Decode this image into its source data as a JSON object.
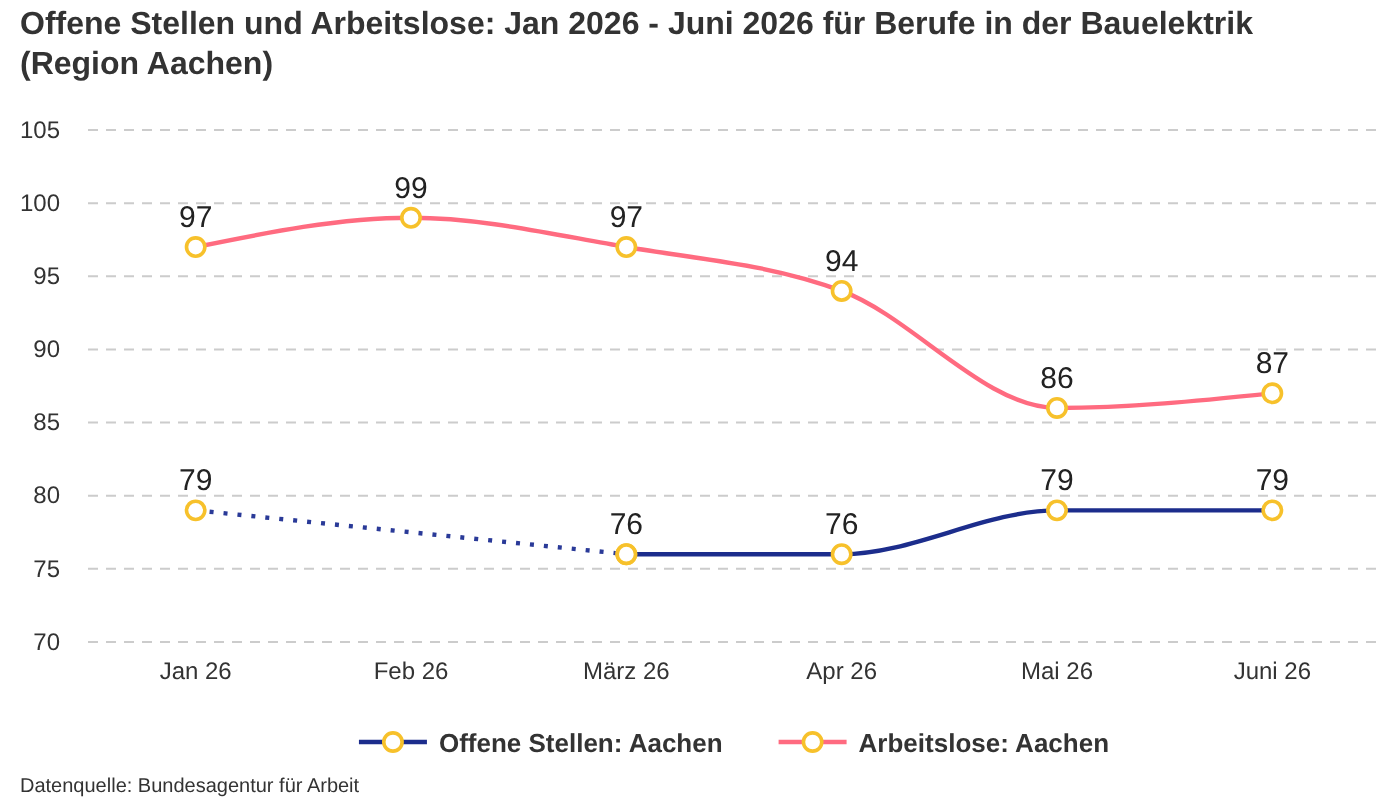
{
  "chart_data": {
    "type": "line",
    "title": "Offene Stellen und Arbeitslose: Jan 2026 - Juni 2026 für Berufe in der Bauelektrik (Region Aachen)",
    "categories": [
      "Jan 26",
      "Feb 26",
      "März 26",
      "Apr 26",
      "Mai 26",
      "Juni 26"
    ],
    "series": [
      {
        "name": "Offene Stellen: Aachen",
        "color": "#1c2d8c",
        "values": [
          null,
          null,
          76,
          76,
          79,
          79
        ]
      },
      {
        "color": "#2a3a98",
        "x": [
          "Jan 26",
          "März 26"
        ],
        "values": [
          79,
          76
        ],
        "value_labels": [
          "79",
          null
        ],
        "line_style": "dotted"
      },
      {
        "name": "Arbeitslose: Aachen",
        "color": "#ff6b80",
        "values": [
          97,
          99,
          97,
          94,
          86,
          87
        ]
      }
    ],
    "ylim": [
      70,
      105
    ],
    "yticks": [
      70,
      75,
      80,
      85,
      90,
      95,
      100,
      105
    ],
    "grid": "y",
    "legend": "bottom",
    "marker": "circle",
    "line_style": "solid",
    "data_labels": true,
    "annotations": [
      "Datenquelle: Bundesagentur für Arbeit"
    ]
  }
}
